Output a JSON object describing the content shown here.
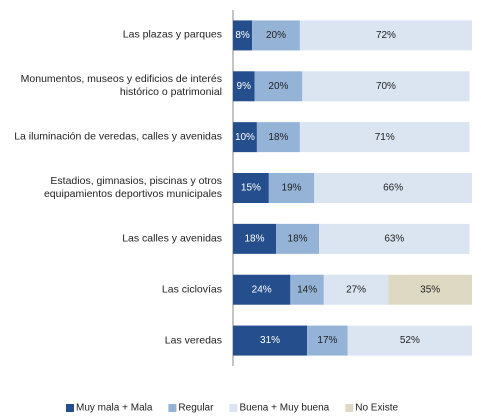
{
  "chart_data": {
    "type": "stacked-barh",
    "categories": [
      "Las plazas y parques",
      "Monumentos, museos y edificios de interés histórico o patrimonial",
      "La iluminación de veredas, calles y avenidas",
      "Estadios, gimnasios, piscinas y otros equipamientos deportivos municipales",
      "Las calles y avenidas",
      "Las ciclovías",
      "Las veredas"
    ],
    "series": [
      {
        "name": "Muy mala + Mala",
        "color": "#254f8c",
        "values": [
          8,
          9,
          10,
          15,
          18,
          24,
          31
        ],
        "value_labels": [
          "8%",
          "9%",
          "10%",
          "15%",
          "18%",
          "24%",
          "31%"
        ]
      },
      {
        "name": "Regular",
        "color": "#95b3d7",
        "values": [
          20,
          20,
          18,
          19,
          18,
          14,
          17
        ],
        "value_labels": [
          "20%",
          "20%",
          "18%",
          "19%",
          "18%",
          "14%",
          "17%"
        ]
      },
      {
        "name": "Buena + Muy buena",
        "color": "#dbe5f1",
        "values": [
          72,
          70,
          71,
          66,
          63,
          27,
          52
        ],
        "value_labels": [
          "72%",
          "70%",
          "71%",
          "66%",
          "63%",
          "27%",
          "52%"
        ]
      },
      {
        "name": "No Existe",
        "color": "#ddd9c3",
        "values": [
          null,
          null,
          null,
          null,
          null,
          35,
          null
        ],
        "value_labels": [
          null,
          null,
          null,
          null,
          null,
          "35%",
          null
        ]
      }
    ],
    "xlim": [
      0,
      100
    ],
    "legend": "bottom"
  }
}
